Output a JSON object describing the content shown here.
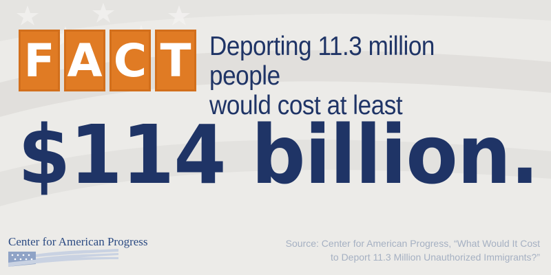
{
  "fact": {
    "letters": [
      "F",
      "A",
      "C",
      "T"
    ]
  },
  "headline": {
    "line1": "Deporting 11.3 million people",
    "line2": "would cost at least"
  },
  "amount": "$114 billion.",
  "logo": {
    "name": "Center for American Progress"
  },
  "source": {
    "line1": "Source: Center for American Progress, “What Would It Cost",
    "line2": "to Deport 11.3 Million Unauthorized Immigrants?”"
  },
  "colors": {
    "accent_orange": "#e07b24",
    "navy": "#1f3466",
    "background": "#ecebe8",
    "source_text": "#a5b0c2"
  }
}
